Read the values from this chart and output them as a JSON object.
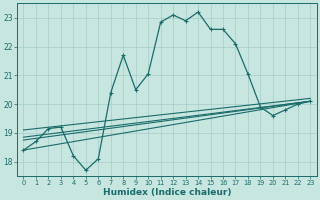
{
  "xlabel": "Humidex (Indice chaleur)",
  "ylabel": "",
  "xlim": [
    -0.5,
    23.5
  ],
  "ylim": [
    17.5,
    23.5
  ],
  "yticks": [
    18,
    19,
    20,
    21,
    22,
    23
  ],
  "xticks": [
    0,
    1,
    2,
    3,
    4,
    5,
    6,
    7,
    8,
    9,
    10,
    11,
    12,
    13,
    14,
    15,
    16,
    17,
    18,
    19,
    20,
    21,
    22,
    23
  ],
  "bg_color": "#c8e6e0",
  "line_color": "#1a6b6b",
  "grid_color": "#a8ccc8",
  "series1_x": [
    0,
    1,
    2,
    3,
    4,
    5,
    6,
    7,
    8,
    9,
    10,
    11,
    12,
    13,
    14,
    15,
    16,
    17,
    18,
    19,
    20,
    21,
    22,
    23
  ],
  "series1_y": [
    18.4,
    18.7,
    19.15,
    19.2,
    18.2,
    17.7,
    18.1,
    20.4,
    21.7,
    20.5,
    21.05,
    22.85,
    23.1,
    22.9,
    23.2,
    22.6,
    22.6,
    22.1,
    21.05,
    19.9,
    19.6,
    19.8,
    20.0,
    20.1
  ],
  "series2_x": [
    0,
    23
  ],
  "series2_y": [
    18.4,
    20.1
  ],
  "series3_x": [
    0,
    23
  ],
  "series3_y": [
    18.75,
    20.1
  ],
  "series4_x": [
    0,
    23
  ],
  "series4_y": [
    18.85,
    20.1
  ],
  "series5_x": [
    0,
    23
  ],
  "series5_y": [
    19.1,
    20.2
  ]
}
